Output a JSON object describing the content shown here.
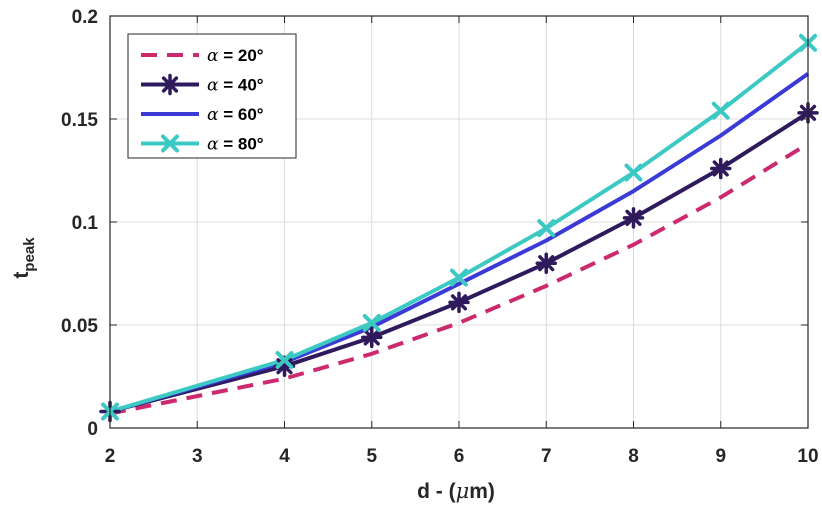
{
  "chart_data": {
    "type": "line",
    "title": "",
    "xlabel_prefix": "d - (",
    "xlabel_symbol": "μ",
    "xlabel_suffix": "m)",
    "ylabel_main": "t",
    "ylabel_sub": "peak",
    "xlim": [
      2,
      10
    ],
    "ylim": [
      0,
      0.2
    ],
    "xticks": [
      2,
      3,
      4,
      5,
      6,
      7,
      8,
      9,
      10
    ],
    "yticks": [
      0,
      0.05,
      0.1,
      0.15,
      0.2
    ],
    "ytick_labels": [
      "0",
      "0.05",
      "0.1",
      "0.15",
      "0.2"
    ],
    "grid": true,
    "legend_position": "top-left",
    "series": [
      {
        "name": "α = 20°",
        "symbol": "α",
        "label_rest": " = 20°",
        "color": "#cc2a6e",
        "style": "dashed",
        "marker": "none",
        "x": [
          2,
          4,
          5,
          6,
          7,
          8,
          9,
          10
        ],
        "values": [
          0.007,
          0.024,
          0.036,
          0.051,
          0.069,
          0.089,
          0.112,
          0.138
        ]
      },
      {
        "name": "α = 40°",
        "symbol": "α",
        "label_rest": " = 40°",
        "color": "#2e1a5c",
        "style": "solid",
        "marker": "asterisk",
        "x": [
          2,
          4,
          5,
          6,
          7,
          8,
          9,
          10
        ],
        "values": [
          0.008,
          0.03,
          0.044,
          0.061,
          0.08,
          0.102,
          0.126,
          0.153
        ]
      },
      {
        "name": "α = 60°",
        "symbol": "α",
        "label_rest": " = 60°",
        "color": "#3a3ad6",
        "style": "solid",
        "marker": "none",
        "x": [
          2,
          4,
          5,
          6,
          7,
          8,
          9,
          10
        ],
        "values": [
          0.008,
          0.032,
          0.049,
          0.07,
          0.091,
          0.115,
          0.142,
          0.172
        ]
      },
      {
        "name": "α = 80°",
        "symbol": "α",
        "label_rest": " = 80°",
        "color": "#3cc9c4",
        "style": "solid",
        "marker": "x",
        "x": [
          2,
          4,
          5,
          6,
          7,
          8,
          9,
          10
        ],
        "values": [
          0.008,
          0.033,
          0.051,
          0.073,
          0.097,
          0.124,
          0.154,
          0.187
        ]
      }
    ]
  }
}
